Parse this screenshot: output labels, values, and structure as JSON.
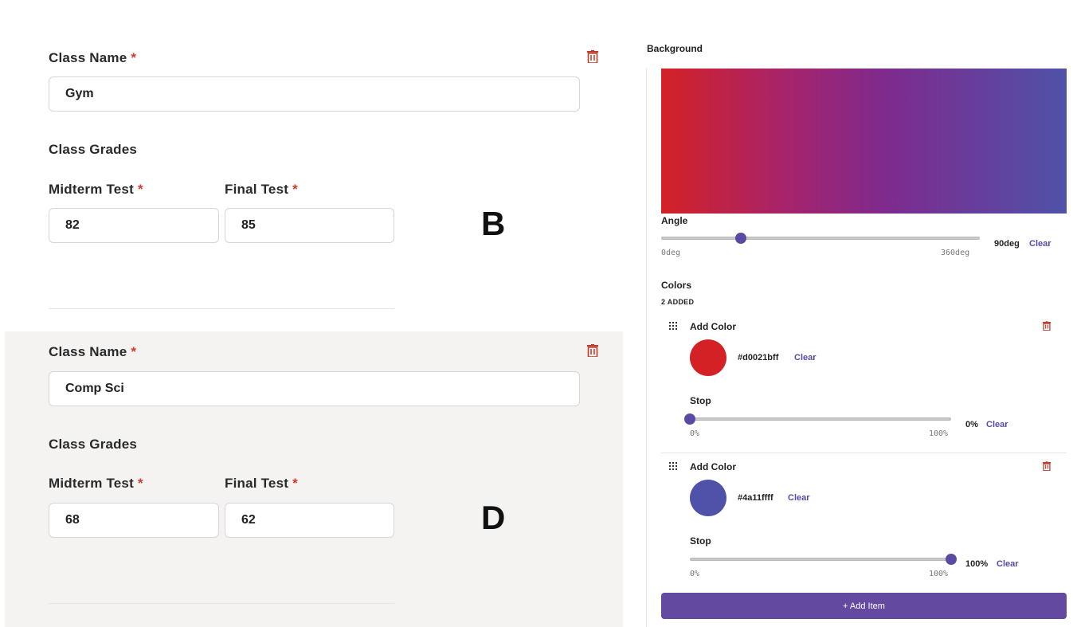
{
  "classes": [
    {
      "name_label": "Class Name",
      "required_mark": "*",
      "name_value": "Gym",
      "grades_heading": "Class Grades",
      "midterm_label": "Midterm Test",
      "final_label": "Final Test",
      "midterm_value": "82",
      "final_value": "85",
      "letter_grade": "B"
    },
    {
      "name_label": "Class Name",
      "required_mark": "*",
      "name_value": "Comp Sci",
      "grades_heading": "Class Grades",
      "midterm_label": "Midterm Test",
      "final_label": "Final Test",
      "midterm_value": "68",
      "final_value": "62",
      "letter_grade": "D"
    }
  ],
  "background": {
    "title": "Background",
    "gradient_colors": [
      "#d0021b",
      "#4a11ff"
    ],
    "angle": {
      "label": "Angle",
      "min_label": "0deg",
      "max_label": "360deg",
      "value": "90deg",
      "value_fraction": 0.25,
      "clear_label": "Clear"
    },
    "colors": {
      "label": "Colors",
      "count_text": "2 ADDED",
      "items": [
        {
          "title": "Add Color",
          "hex": "#d0021bff",
          "swatch_color": "#d42126",
          "clear_label": "Clear",
          "stop_label": "Stop",
          "stop_min": "0%",
          "stop_max": "100%",
          "stop_value": "0%",
          "stop_fraction": 0,
          "stop_clear": "Clear"
        },
        {
          "title": "Add Color",
          "hex": "#4a11ffff",
          "swatch_color": "#4f52a8",
          "clear_label": "Clear",
          "stop_label": "Stop",
          "stop_min": "0%",
          "stop_max": "100%",
          "stop_value": "100%",
          "stop_fraction": 1,
          "stop_clear": "Clear"
        }
      ]
    },
    "add_item_label": "+ Add Item"
  },
  "colors": {
    "accent": "#5b4aa3",
    "danger": "#c0392b",
    "button_bg": "#6349a0"
  }
}
